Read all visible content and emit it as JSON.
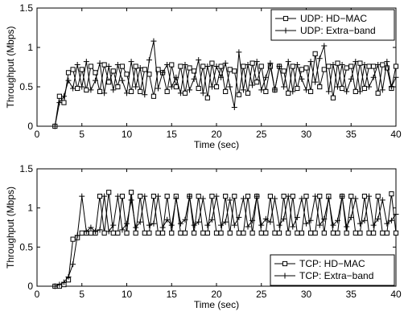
{
  "chart_data": [
    {
      "type": "line",
      "xlabel": "Time (sec)",
      "ylabel": "Throughput (Mbps)",
      "xlim": [
        0,
        40
      ],
      "ylim": [
        0,
        1.5
      ],
      "xticks": [
        0,
        5,
        10,
        15,
        20,
        25,
        30,
        35,
        40
      ],
      "yticks": [
        0,
        0.5,
        1,
        1.5
      ],
      "ytick_labels": [
        "0",
        "0.5",
        "1",
        "1.5"
      ],
      "grid": false,
      "legend_position": "top-right",
      "series": [
        {
          "name": "UDP: HD−MAC",
          "marker": "square",
          "x": [
            2,
            2.5,
            3,
            3.5,
            4,
            4.5,
            5,
            5.5,
            6,
            6.5,
            7,
            7.5,
            8,
            8.5,
            9,
            9.5,
            10,
            10.5,
            11,
            11.5,
            12,
            12.5,
            13,
            13.5,
            14,
            14.5,
            15,
            15.5,
            16,
            16.5,
            17,
            17.5,
            18,
            18.5,
            19,
            19.5,
            20,
            20.5,
            21,
            21.5,
            22,
            22.5,
            23,
            23.5,
            24,
            24.5,
            25,
            25.5,
            26,
            26.5,
            27,
            27.5,
            28,
            28.5,
            29,
            29.5,
            30,
            30.5,
            31,
            31.5,
            32,
            32.5,
            33,
            33.5,
            34,
            34.5,
            35,
            35.5,
            36,
            36.5,
            37,
            37.5,
            38,
            38.5,
            39,
            39.5,
            40
          ],
          "y": [
            0,
            0.38,
            0.3,
            0.68,
            0.72,
            0.48,
            0.72,
            0.46,
            0.76,
            0.68,
            0.44,
            0.78,
            0.56,
            0.7,
            0.5,
            0.76,
            0.66,
            0.44,
            0.76,
            0.44,
            0.72,
            0.66,
            0.38,
            0.72,
            0.68,
            0.44,
            0.78,
            0.5,
            0.76,
            0.42,
            0.74,
            0.7,
            0.48,
            0.76,
            0.36,
            0.8,
            0.5,
            0.76,
            0.44,
            0.72,
            0.7,
            0.4,
            0.76,
            0.42,
            0.8,
            0.56,
            0.76,
            0.44,
            0.76,
            0.46,
            0.76,
            0.7,
            0.42,
            0.76,
            0.48,
            0.72,
            0.74,
            0.44,
            0.92,
            0.5,
            0.72,
            0.76,
            0.36,
            0.8,
            0.48,
            0.74,
            0.76,
            0.44,
            0.8,
            0.48,
            0.76,
            0.76,
            0.42,
            0.78,
            0.74,
            0.48,
            0.76
          ]
        },
        {
          "name": "UDP: Extra−band",
          "marker": "plus",
          "x": [
            2,
            2.5,
            3,
            3.5,
            4,
            4.5,
            5,
            5.5,
            6,
            6.5,
            7,
            7.5,
            8,
            8.5,
            9,
            9.5,
            10,
            10.5,
            11,
            11.5,
            12,
            12.5,
            13,
            13.5,
            14,
            14.5,
            15,
            15.5,
            16,
            16.5,
            17,
            17.5,
            18,
            18.5,
            19,
            19.5,
            20,
            20.5,
            21,
            21.5,
            22,
            22.5,
            23,
            23.5,
            24,
            24.5,
            25,
            25.5,
            26,
            26.5,
            27,
            27.5,
            28,
            28.5,
            29,
            29.5,
            30,
            30.5,
            31,
            31.5,
            32,
            32.5,
            33,
            33.5,
            34,
            34.5,
            35,
            35.5,
            36,
            36.5,
            37,
            37.5,
            38,
            38.5,
            39,
            39.5,
            40
          ],
          "y": [
            0,
            0.3,
            0.38,
            0.58,
            0.48,
            0.78,
            0.5,
            0.82,
            0.46,
            0.58,
            0.8,
            0.42,
            0.76,
            0.46,
            0.78,
            0.58,
            0.42,
            0.82,
            0.5,
            0.74,
            0.4,
            0.84,
            1.08,
            0.48,
            0.68,
            0.78,
            0.5,
            0.62,
            0.42,
            0.78,
            0.46,
            0.6,
            0.84,
            0.42,
            0.76,
            0.5,
            0.76,
            0.62,
            0.8,
            0.5,
            0.24,
            0.94,
            0.46,
            0.78,
            0.52,
            0.82,
            0.46,
            0.62,
            0.8,
            0.46,
            0.76,
            0.5,
            0.82,
            0.44,
            0.78,
            0.6,
            0.46,
            0.82,
            0.56,
            0.86,
            1.02,
            0.44,
            0.78,
            0.5,
            0.78,
            0.44,
            0.6,
            0.82,
            0.44,
            0.78,
            0.5,
            0.62,
            0.78,
            0.46,
            0.82,
            0.5,
            0.62
          ]
        }
      ]
    },
    {
      "type": "line",
      "xlabel": "Time (sec)",
      "ylabel": "Throughput (Mbps)",
      "xlim": [
        0,
        40
      ],
      "ylim": [
        0,
        1.5
      ],
      "xticks": [
        0,
        5,
        10,
        15,
        20,
        25,
        30,
        35,
        40
      ],
      "yticks": [
        0,
        0.5,
        1,
        1.5
      ],
      "ytick_labels": [
        "0",
        "0.5",
        "1",
        "1.5"
      ],
      "grid": false,
      "legend_position": "bottom-right",
      "series": [
        {
          "name": "TCP: HD−MAC",
          "marker": "square",
          "x": [
            2,
            2.5,
            3,
            3.5,
            4,
            4.5,
            5,
            5.5,
            6,
            6.5,
            7,
            7.5,
            8,
            8.5,
            9,
            9.5,
            10,
            10.5,
            11,
            11.5,
            12,
            12.5,
            13,
            13.5,
            14,
            14.5,
            15,
            15.5,
            16,
            16.5,
            17,
            17.5,
            18,
            18.5,
            19,
            19.5,
            20,
            20.5,
            21,
            21.5,
            22,
            22.5,
            23,
            23.5,
            24,
            24.5,
            25,
            25.5,
            26,
            26.5,
            27,
            27.5,
            28,
            28.5,
            29,
            29.5,
            30,
            30.5,
            31,
            31.5,
            32,
            32.5,
            33,
            33.5,
            34,
            34.5,
            35,
            35.5,
            36,
            36.5,
            37,
            37.5,
            38,
            38.5,
            39,
            39.5,
            40
          ],
          "y": [
            0,
            0,
            0.02,
            0.08,
            0.6,
            0.62,
            0.68,
            0.68,
            0.68,
            0.68,
            1.15,
            0.68,
            1.2,
            0.68,
            0.68,
            1.15,
            0.68,
            1.2,
            0.68,
            1.15,
            0.68,
            0.68,
            1.15,
            0.68,
            0.68,
            1.15,
            0.68,
            1.15,
            0.68,
            0.68,
            1.15,
            0.68,
            1.15,
            0.68,
            0.68,
            1.15,
            0.68,
            0.68,
            1.15,
            0.68,
            1.15,
            0.68,
            0.68,
            1.15,
            0.68,
            1.15,
            0.68,
            0.68,
            1.15,
            0.68,
            0.68,
            1.15,
            0.68,
            1.15,
            0.68,
            0.68,
            1.15,
            0.68,
            0.68,
            1.15,
            0.68,
            1.15,
            0.68,
            0.68,
            1.15,
            0.68,
            1.15,
            0.68,
            0.68,
            1.15,
            0.68,
            0.68,
            1.15,
            0.68,
            0.68,
            1.18,
            0.68
          ]
        },
        {
          "name": "TCP: Extra−band",
          "marker": "plus",
          "x": [
            2,
            2.5,
            3,
            3.5,
            4,
            4.5,
            5,
            5.5,
            6,
            6.5,
            7,
            7.5,
            8,
            8.5,
            9,
            9.5,
            10,
            10.5,
            11,
            11.5,
            12,
            12.5,
            13,
            13.5,
            14,
            14.5,
            15,
            15.5,
            16,
            16.5,
            17,
            17.5,
            18,
            18.5,
            19,
            19.5,
            20,
            20.5,
            21,
            21.5,
            22,
            22.5,
            23,
            23.5,
            24,
            24.5,
            25,
            25.5,
            26,
            26.5,
            27,
            27.5,
            28,
            28.5,
            29,
            29.5,
            30,
            30.5,
            31,
            31.5,
            32,
            32.5,
            33,
            33.5,
            34,
            34.5,
            35,
            35.5,
            36,
            36.5,
            37,
            37.5,
            38,
            38.5,
            39,
            39.5,
            40
          ],
          "y": [
            0,
            0.02,
            0.05,
            0.12,
            0.28,
            0.65,
            1.15,
            0.7,
            0.75,
            0.7,
            0.72,
            1.15,
            0.7,
            0.78,
            1.15,
            0.72,
            0.8,
            1.1,
            0.75,
            0.82,
            1.15,
            0.78,
            0.8,
            1.15,
            0.75,
            0.85,
            0.78,
            1.12,
            0.8,
            0.85,
            1.15,
            0.78,
            0.82,
            1.12,
            0.78,
            0.85,
            1.15,
            0.78,
            0.82,
            1.1,
            0.78,
            0.88,
            1.12,
            0.76,
            0.84,
            1.15,
            0.78,
            0.86,
            0.82,
            1.12,
            0.78,
            0.86,
            1.15,
            0.76,
            0.88,
            1.12,
            0.8,
            0.84,
            1.15,
            0.78,
            0.86,
            1.12,
            0.78,
            0.84,
            1.15,
            0.76,
            0.88,
            1.12,
            0.8,
            0.84,
            1.15,
            0.78,
            0.86,
            1.1,
            0.8,
            0.84,
            0.92
          ]
        }
      ]
    }
  ]
}
